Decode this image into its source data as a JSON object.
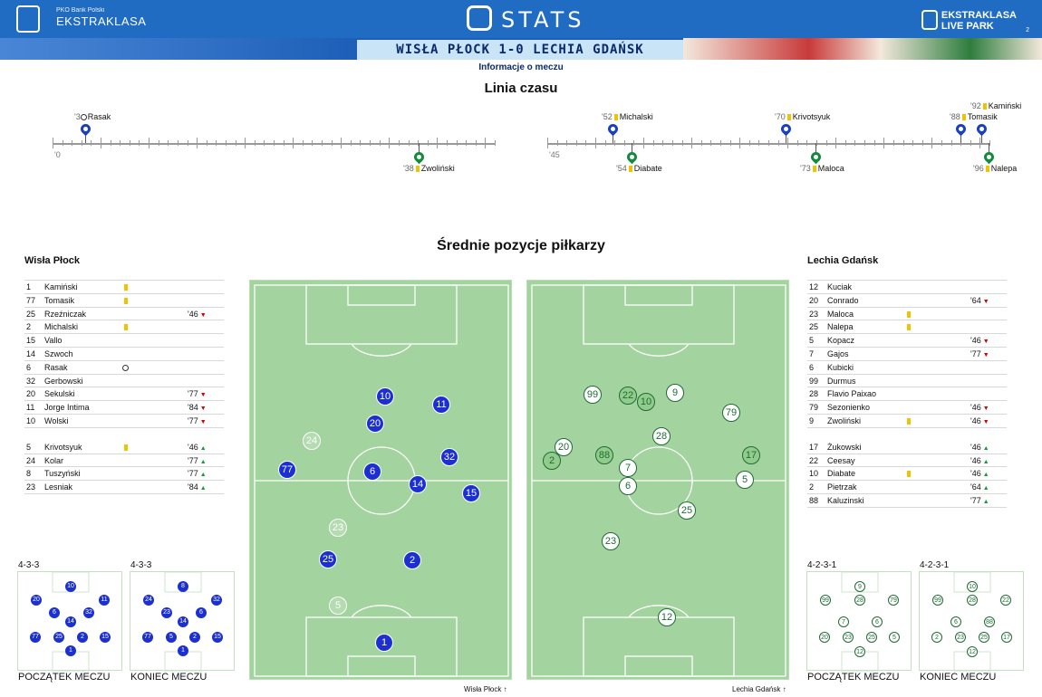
{
  "header": {
    "brand_small": "PKO Bank Polski",
    "brand": "EKSTRAKLASA",
    "stats": "STATS",
    "live_line1": "EKSTRAKLASA",
    "live_line2": "LIVE PARK",
    "page": "2"
  },
  "match": {
    "title": "WISŁA PŁOCK 1-0 LECHIA GDAŃSK",
    "subtitle": "Informacje o meczu"
  },
  "timeline": {
    "title": "Linia czasu",
    "start1": "'0",
    "start2": "'45",
    "top": [
      {
        "min": "'3",
        "name": "Rasak",
        "team": "h",
        "icon": "ball"
      },
      {
        "min": "'52",
        "name": "Michalski",
        "team": "h",
        "icon": "card"
      },
      {
        "min": "'70",
        "name": "Krivotsyuk",
        "team": "h",
        "icon": "card"
      },
      {
        "min": "'88",
        "name": "Tomasik",
        "team": "h",
        "icon": "card"
      },
      {
        "min": "'92",
        "name": "Kamiński",
        "team": "h",
        "icon": "card"
      }
    ],
    "bottom": [
      {
        "min": "'38",
        "name": "Zwoliński",
        "team": "a",
        "icon": "card"
      },
      {
        "min": "'54",
        "name": "Diabate",
        "team": "a",
        "icon": "card"
      },
      {
        "min": "'73",
        "name": "Maloca",
        "team": "a",
        "icon": "card"
      },
      {
        "min": "'96",
        "name": "Nalepa",
        "team": "a",
        "icon": "card"
      }
    ]
  },
  "positions_title": "Średnie pozycje piłkarzy",
  "home": {
    "name": "Wisła Płock",
    "starters": [
      [
        "1",
        "Kamiński",
        "card",
        ""
      ],
      [
        "77",
        "Tomasik",
        "card",
        ""
      ],
      [
        "25",
        "Rzeźniczak",
        "",
        "'46"
      ],
      [
        "2",
        "Michalski",
        "card",
        ""
      ],
      [
        "15",
        "Vallo",
        "",
        ""
      ],
      [
        "14",
        "Szwoch",
        "",
        ""
      ],
      [
        "6",
        "Rasak",
        "ball",
        ""
      ],
      [
        "32",
        "Gerbowski",
        "",
        ""
      ],
      [
        "20",
        "Sekulski",
        "",
        "'77"
      ],
      [
        "11",
        "Jorge Intima",
        "",
        "'84"
      ],
      [
        "10",
        "Wolski",
        "",
        "'77"
      ]
    ],
    "subs": [
      [
        "5",
        "Krivotsyuk",
        "card",
        "'46"
      ],
      [
        "24",
        "Kolar",
        "",
        "'77"
      ],
      [
        "8",
        "Tuszyński",
        "",
        "'77"
      ],
      [
        "23",
        "Lesniak",
        "",
        "'84"
      ]
    ],
    "formation_start": "4-3-3",
    "formation_end": "4-3-3",
    "start_label": "POCZĄTEK MECZU",
    "end_label": "KONIEC MECZU",
    "pitch_label": "Wisła Płock"
  },
  "away": {
    "name": "Lechia Gdańsk",
    "starters": [
      [
        "12",
        "Kuciak",
        "",
        ""
      ],
      [
        "20",
        "Conrado",
        "",
        "'64"
      ],
      [
        "23",
        "Maloca",
        "card",
        ""
      ],
      [
        "25",
        "Nalepa",
        "card",
        ""
      ],
      [
        "5",
        "Kopacz",
        "",
        "'46"
      ],
      [
        "7",
        "Gajos",
        "",
        "'77"
      ],
      [
        "6",
        "Kubicki",
        "",
        ""
      ],
      [
        "99",
        "Durmus",
        "",
        ""
      ],
      [
        "28",
        "Flavio Paixao",
        "",
        ""
      ],
      [
        "79",
        "Sezonienko",
        "",
        "'46"
      ],
      [
        "9",
        "Zwoliński",
        "card",
        "'46"
      ]
    ],
    "subs": [
      [
        "17",
        "Żukowski",
        "",
        "'46"
      ],
      [
        "22",
        "Ceesay",
        "",
        "'46"
      ],
      [
        "10",
        "Diabate",
        "card",
        "'46"
      ],
      [
        "2",
        "Pietrzak",
        "",
        "'64"
      ],
      [
        "88",
        "Kaluzinski",
        "",
        "'77"
      ]
    ],
    "formation_start": "4-2-3-1",
    "formation_end": "4-2-3-1",
    "start_label": "POCZĄTEK MECZU",
    "end_label": "KONIEC MECZU",
    "pitch_label": "Lechia Gdańsk"
  },
  "colors": {
    "header": "#1f6cc2",
    "home": "#1c2fd1",
    "away": "#1f6b34",
    "pitch": "#a3d39e",
    "card": "#f2c100"
  }
}
